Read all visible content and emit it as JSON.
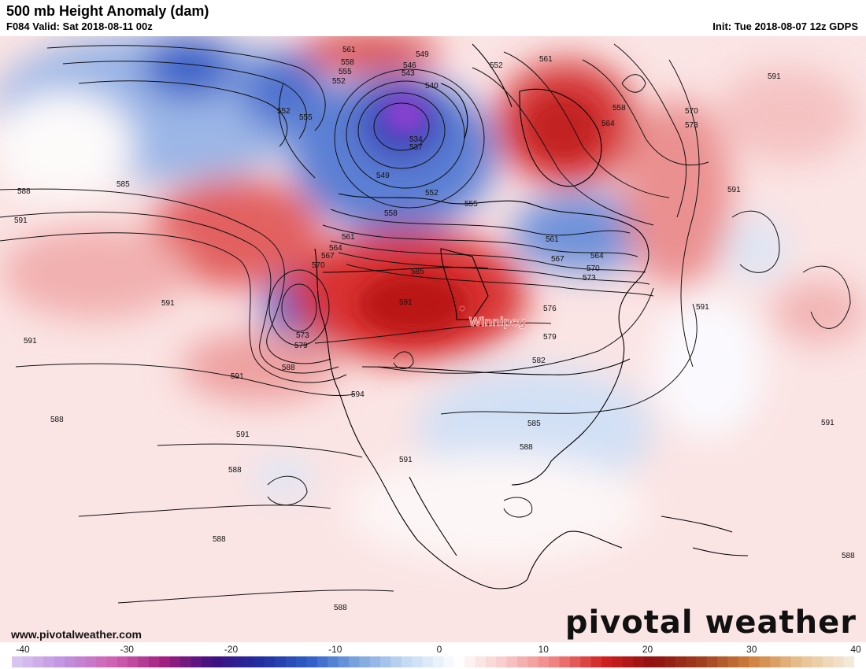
{
  "header": {
    "title": "500 mb Height Anomaly (dam)",
    "valid": "F084 Valid: Sat 2018-08-11 00z",
    "init": "Init: Tue 2018-08-07 12z GDPS"
  },
  "map": {
    "city": {
      "name": "Winnipeg",
      "color": "#e05050"
    },
    "contour_labels": [
      "561",
      "558",
      "555",
      "552",
      "549",
      "546",
      "543",
      "540",
      "537",
      "534",
      "552",
      "555",
      "561",
      "552",
      "558",
      "564",
      "570",
      "573",
      "585",
      "588",
      "591",
      "591",
      "591",
      "591",
      "549",
      "552",
      "555",
      "558",
      "561",
      "564",
      "567",
      "570",
      "573",
      "576",
      "579",
      "582",
      "585",
      "588",
      "561",
      "564",
      "567",
      "570",
      "573",
      "579",
      "585",
      "591",
      "594",
      "588",
      "591",
      "591",
      "588",
      "591",
      "591",
      "588",
      "588",
      "588",
      "591",
      "591",
      "588"
    ],
    "colors": {
      "strong_positive": "#c41a1a",
      "positive": "#f08a8a",
      "weak_positive": "#f8d2d2",
      "strong_negative": "#2a4fbf",
      "negative": "#7d9ee0",
      "weak_negative": "#d4e0f4",
      "extreme_negative": "#8a3fd0",
      "land_line": "#000000"
    }
  },
  "footer": {
    "website": "www.pivotalweather.com",
    "brand": "pivotal weather"
  },
  "colorbar": {
    "ticks": [
      "-40",
      "-30",
      "-20",
      "-10",
      "0",
      "10",
      "20",
      "30",
      "40"
    ],
    "range": [
      -40,
      40
    ],
    "stops": [
      "#d8c4f0",
      "#c090e0",
      "#d060b0",
      "#a02080",
      "#401080",
      "#2030a0",
      "#3060c8",
      "#80a8e0",
      "#c8dcf4",
      "#ffffff",
      "#f8c8c8",
      "#f08080",
      "#d02020",
      "#901010",
      "#a04020",
      "#d08040",
      "#e8c090",
      "#f4e8d8"
    ]
  }
}
